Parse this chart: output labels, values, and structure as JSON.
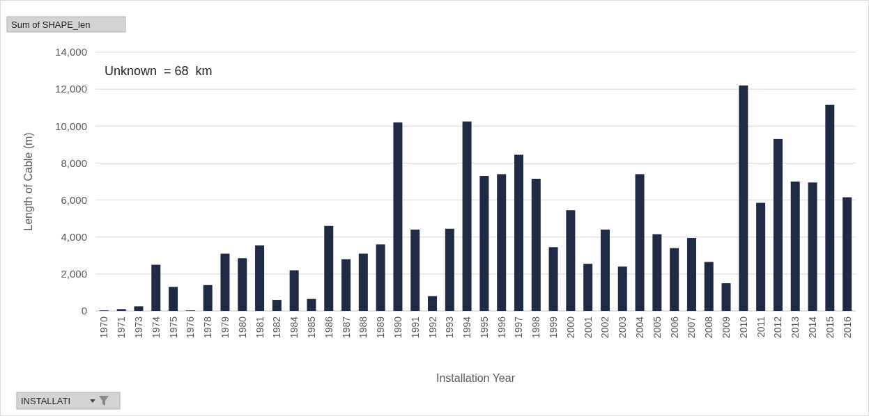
{
  "chart_data": {
    "type": "bar",
    "xlabel": "Installation Year",
    "ylabel": "Length of Cable (m)",
    "annotations": [
      "Unknown  = 68  km",
      "Sum of SHAPE_len",
      "INSTALLATI"
    ],
    "categories": [
      "1970",
      "1971",
      "1973",
      "1974",
      "1975",
      "1976",
      "1978",
      "1979",
      "1980",
      "1981",
      "1982",
      "1984",
      "1985",
      "1986",
      "1987",
      "1988",
      "1989",
      "1990",
      "1991",
      "1992",
      "1993",
      "1994",
      "1995",
      "1996",
      "1997",
      "1998",
      "1999",
      "2000",
      "2001",
      "2002",
      "2003",
      "2004",
      "2005",
      "2006",
      "2007",
      "2008",
      "2009",
      "2010",
      "2011",
      "2012",
      "2013",
      "2014",
      "2015",
      "2016"
    ],
    "values": [
      30,
      100,
      250,
      2500,
      1300,
      30,
      1400,
      3100,
      2850,
      3550,
      600,
      2200,
      650,
      4600,
      2800,
      3100,
      3600,
      10200,
      4400,
      800,
      4450,
      10250,
      7300,
      7400,
      8450,
      7150,
      3450,
      5450,
      2550,
      4400,
      2400,
      7400,
      4150,
      3400,
      3950,
      2650,
      1500,
      12200,
      5850,
      9300,
      7000,
      6950,
      11150,
      6150
    ],
    "color": "#1f2a44",
    "ylim": [
      0,
      14000
    ],
    "yticks": [
      {
        "value": 0,
        "label": "0"
      },
      {
        "value": 2000,
        "label": "2,000"
      },
      {
        "value": 4000,
        "label": "4,000"
      },
      {
        "value": 6000,
        "label": "6,000"
      },
      {
        "value": 8000,
        "label": "8,000"
      },
      {
        "value": 10000,
        "label": "10,000"
      },
      {
        "value": 12000,
        "label": "12,000"
      },
      {
        "value": 14000,
        "label": "14,000"
      }
    ],
    "grid": "y"
  }
}
